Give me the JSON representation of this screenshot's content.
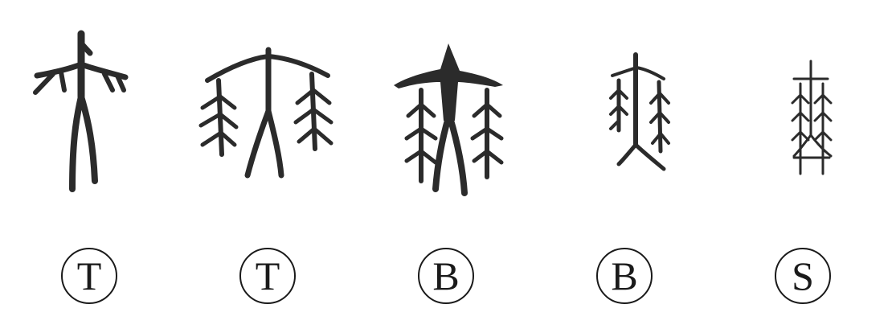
{
  "glyphs": [
    {
      "label": "T"
    },
    {
      "label": "T"
    },
    {
      "label": "B"
    },
    {
      "label": "B"
    },
    {
      "label": "S"
    }
  ]
}
